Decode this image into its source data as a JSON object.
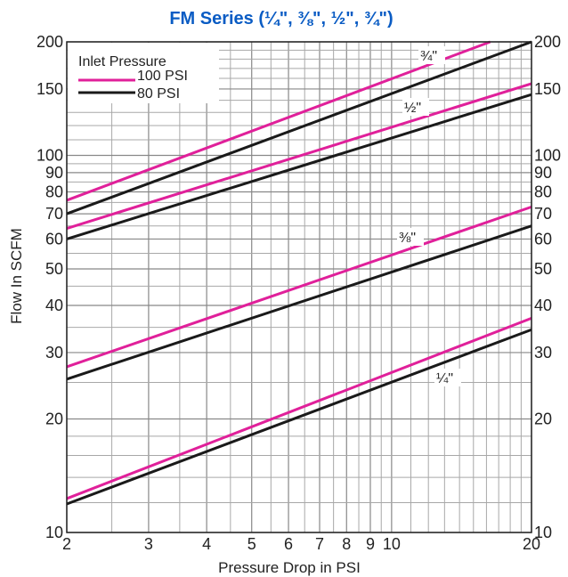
{
  "chart_data": {
    "type": "line",
    "title": "FM Series (¼\", ⅜\", ½\", ¾\")",
    "xlabel": "Pressure Drop in PSI",
    "ylabel": "Flow In SCFM",
    "x_scale": "log",
    "y_scale": "log",
    "xlim": [
      2,
      20
    ],
    "ylim": [
      10,
      200
    ],
    "x_ticks": [
      2,
      3,
      4,
      5,
      6,
      7,
      8,
      9,
      10,
      20
    ],
    "x_tick_labels": [
      "2",
      "3",
      "4",
      "5",
      "6",
      "7",
      "8",
      "9",
      "10",
      "20"
    ],
    "y_ticks": [
      10,
      20,
      30,
      40,
      50,
      60,
      70,
      80,
      90,
      100,
      150,
      200
    ],
    "y_tick_labels": [
      "10",
      "20",
      "30",
      "40",
      "50",
      "60",
      "70",
      "80",
      "90",
      "100",
      "150",
      "200"
    ],
    "grid": true,
    "legend": {
      "title": "Inlet Pressure",
      "placement": "top-left",
      "entries": [
        {
          "label": "100 PSI",
          "color": "#e0209a"
        },
        {
          "label": "80 PSI",
          "color": "#1a1a1a"
        }
      ]
    },
    "size_labels": [
      "¾\"",
      "½\"",
      "⅜\"",
      "¼\""
    ],
    "series": [
      {
        "size": "¾\"",
        "pressure": "100 PSI",
        "color": "#e0209a",
        "x": [
          2,
          16.3
        ],
        "y": [
          76,
          200
        ]
      },
      {
        "size": "¾\"",
        "pressure": "80 PSI",
        "color": "#1a1a1a",
        "x": [
          2,
          20
        ],
        "y": [
          70,
          200
        ]
      },
      {
        "size": "½\"",
        "pressure": "100 PSI",
        "color": "#e0209a",
        "x": [
          2,
          20
        ],
        "y": [
          64,
          155
        ]
      },
      {
        "size": "½\"",
        "pressure": "80 PSI",
        "color": "#1a1a1a",
        "x": [
          2,
          20
        ],
        "y": [
          60,
          145
        ]
      },
      {
        "size": "⅜\"",
        "pressure": "100 PSI",
        "color": "#e0209a",
        "x": [
          2,
          20
        ],
        "y": [
          27.5,
          73
        ]
      },
      {
        "size": "⅜\"",
        "pressure": "80 PSI",
        "color": "#1a1a1a",
        "x": [
          2,
          20
        ],
        "y": [
          25.5,
          65
        ]
      },
      {
        "size": "¼\"",
        "pressure": "100 PSI",
        "color": "#e0209a",
        "x": [
          2,
          20
        ],
        "y": [
          12.3,
          37
        ]
      },
      {
        "size": "¼\"",
        "pressure": "80 PSI",
        "color": "#1a1a1a",
        "x": [
          2,
          20
        ],
        "y": [
          11.9,
          34.5
        ]
      }
    ]
  }
}
